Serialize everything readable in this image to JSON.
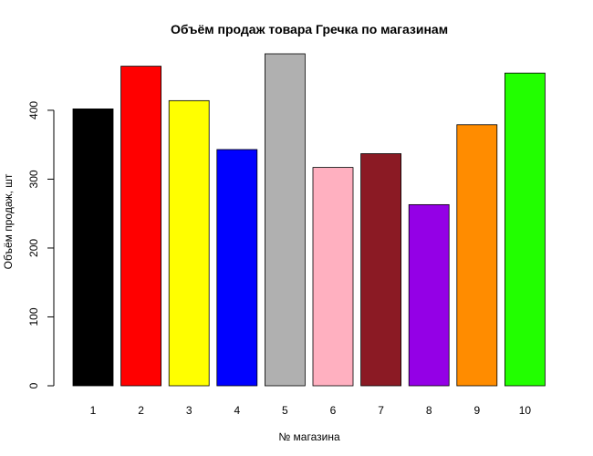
{
  "chart_data": {
    "type": "bar",
    "title": "Объём продаж товара Гречка по магазинам",
    "xlabel": "№ магазина",
    "ylabel": "Объём продаж, шт",
    "categories": [
      "1",
      "2",
      "3",
      "4",
      "5",
      "6",
      "7",
      "8",
      "9",
      "10"
    ],
    "values": [
      402,
      464,
      414,
      343,
      482,
      317,
      337,
      263,
      379,
      454
    ],
    "colors": [
      "#000000",
      "#ff0000",
      "#ffff00",
      "#0000ff",
      "#b0b0b0",
      "#ffb0c0",
      "#8b1a24",
      "#9400e6",
      "#ff8c00",
      "#22ff00"
    ],
    "ylim": [
      0,
      482
    ],
    "yticks": [
      0,
      100,
      200,
      300,
      400
    ],
    "grid": false,
    "legend": "none"
  }
}
